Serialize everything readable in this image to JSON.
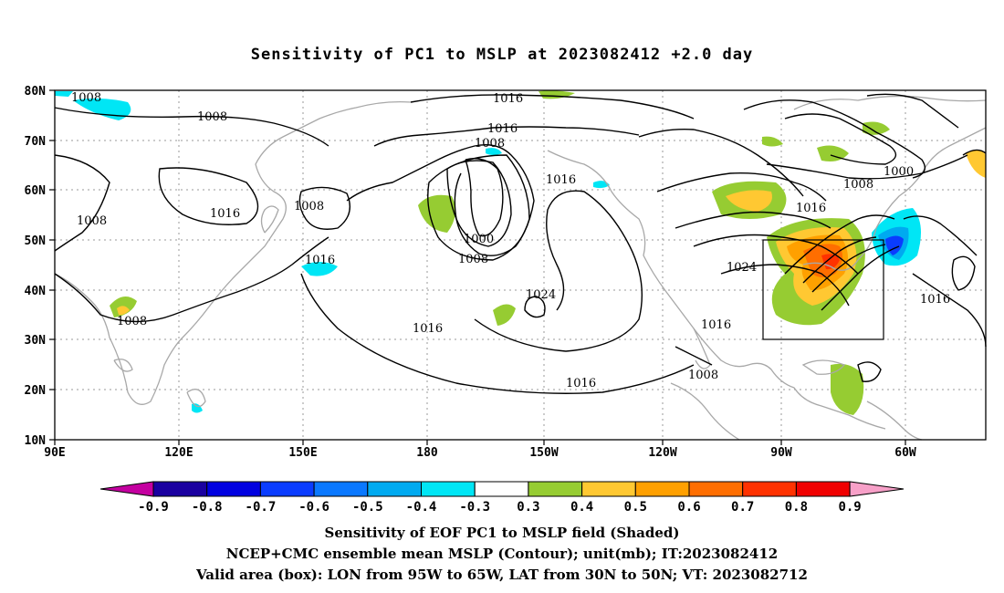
{
  "title": "Sensitivity of PC1 to MSLP at 2023082412 +2.0 day",
  "x_ticks": [
    "90E",
    "120E",
    "150E",
    "180",
    "150W",
    "120W",
    "90W",
    "60W"
  ],
  "y_ticks": [
    "80N",
    "70N",
    "60N",
    "50N",
    "40N",
    "30N",
    "20N",
    "10N"
  ],
  "contour_labels": [
    "1008",
    "1008",
    "1008",
    "1016",
    "1008",
    "1016",
    "1008",
    "1016",
    "1016",
    "1008",
    "1000",
    "1008",
    "1016",
    "1024",
    "1016",
    "1016",
    "1000",
    "1008",
    "1016",
    "1024",
    "1016",
    "1008",
    "1016"
  ],
  "colorbar": {
    "labels": [
      "-0.9",
      "-0.8",
      "-0.7",
      "-0.6",
      "-0.5",
      "-0.4",
      "-0.3",
      "0.3",
      "0.4",
      "0.5",
      "0.6",
      "0.7",
      "0.8",
      "0.9"
    ],
    "colors": [
      "#1a00a0",
      "#0000e0",
      "#0a3cff",
      "#0a78ff",
      "#00aaf0",
      "#00e6f5",
      "#ffffff",
      "#96cc32",
      "#ffc832",
      "#ffa000",
      "#ff6e00",
      "#ff3200",
      "#f00000"
    ],
    "low_color": "#c400a0",
    "high_color": "#f7a0c8"
  },
  "footer": {
    "line1": "Sensitivity of EOF PC1 to MSLP field (Shaded)",
    "line2": "NCEP+CMC ensemble mean MSLP (Contour); unit(mb); IT:2023082412",
    "line3": "Valid area (box): LON from 95W to 65W, LAT from 30N to 50N; VT: 2023082712"
  }
}
